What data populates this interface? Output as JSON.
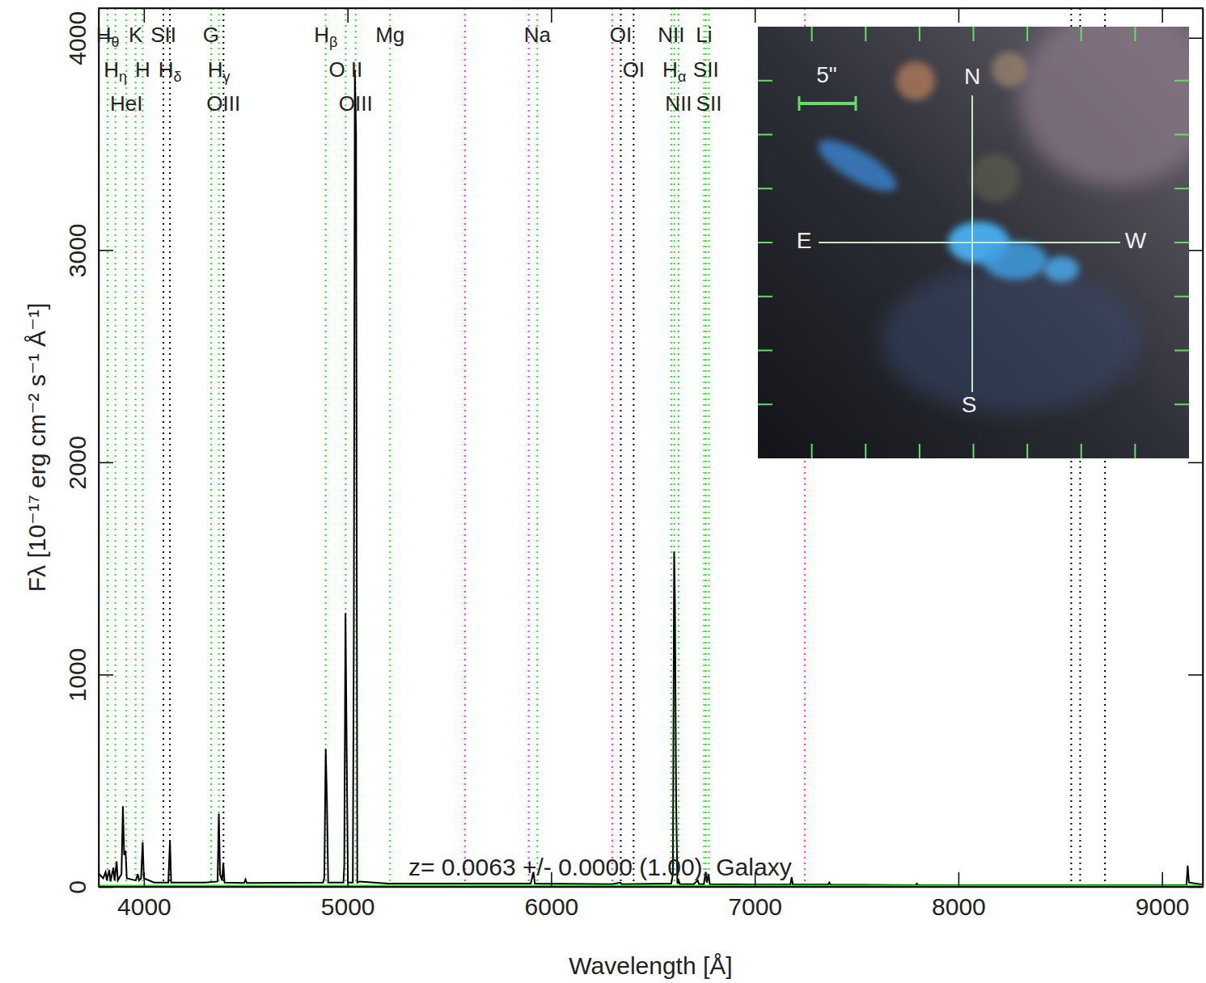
{
  "chart_data": {
    "type": "line",
    "xlabel": "Wavelength [Å]",
    "ylabel": "Fλ [10⁻¹⁷ erg cm⁻² s⁻¹ Å⁻¹]",
    "annotation": "z= 0.0063 +/- 0.0000 (1.00), Galaxy",
    "xlim": [
      3778,
      9200
    ],
    "ylim": [
      0,
      4140
    ],
    "xticks": [
      4000,
      5000,
      6000,
      7000,
      8000,
      9000
    ],
    "yticks": [
      0,
      1000,
      2000,
      3000,
      4000
    ],
    "x": [
      3780,
      3800,
      3812,
      3818,
      3830,
      3836,
      3850,
      3856,
      3866,
      3872,
      3890,
      3897,
      3903,
      3910,
      3916,
      3960,
      3970,
      3976,
      3986,
      3994,
      4000,
      4050,
      4120,
      4128,
      4134,
      4300,
      4362,
      4368,
      4374,
      4384,
      4390,
      4396,
      4492,
      4499,
      4505,
      4880,
      4886,
      4893,
      4899,
      4905,
      4980,
      4984,
      4990,
      4996,
      5002,
      5026,
      5031,
      5036,
      5042,
      5048,
      5060,
      5200,
      5900,
      5913,
      5920,
      6300,
      6340,
      6346,
      6590,
      6598,
      6604,
      6608,
      6614,
      6620,
      6626,
      6632,
      6700,
      6720,
      6726,
      6750,
      6759,
      6765,
      6773,
      6779,
      7000,
      7175,
      7181,
      7187,
      7360,
      7366,
      7372,
      7790,
      7796,
      7802,
      9000,
      9120,
      9126,
      9132,
      9200
    ],
    "series": [
      {
        "color": "#000000",
        "values": [
          60,
          40,
          70,
          30,
          80,
          25,
          90,
          30,
          120,
          30,
          60,
          380,
          150,
          170,
          40,
          30,
          60,
          30,
          40,
          210,
          40,
          20,
          20,
          215,
          20,
          20,
          25,
          345,
          60,
          30,
          110,
          20,
          18,
          35,
          18,
          20,
          40,
          650,
          400,
          20,
          20,
          100,
          1290,
          640,
          20,
          20,
          1200,
          3850,
          3550,
          20,
          25,
          15,
          15,
          70,
          15,
          12,
          20,
          12,
          15,
          60,
          1580,
          1340,
          400,
          15,
          30,
          12,
          12,
          30,
          12,
          12,
          70,
          20,
          60,
          12,
          10,
          10,
          45,
          10,
          10,
          20,
          10,
          8,
          15,
          8,
          8,
          8,
          100,
          20,
          10
        ]
      },
      {
        "color": "#22dd22",
        "x": [
          3780,
          9200
        ],
        "values": [
          5,
          5
        ]
      }
    ],
    "line_markers": [
      {
        "wavelength": 3822,
        "label": "Hθ",
        "color": "#33dd33"
      },
      {
        "wavelength": 3860,
        "label": "Hη",
        "color": "#33dd33"
      },
      {
        "wavelength": 3914,
        "label": "HeI",
        "color": "#33dd33"
      },
      {
        "wavelength": 3959,
        "label": "K",
        "color": "#33dd33"
      },
      {
        "wavelength": 3994,
        "label": "H",
        "color": "#33dd33"
      },
      {
        "wavelength": 4096,
        "label": "SII",
        "color": "#000000"
      },
      {
        "wavelength": 4128,
        "label": "Hδ",
        "color": "#000000"
      },
      {
        "wavelength": 4330,
        "label": "G",
        "color": "#33dd33"
      },
      {
        "wavelength": 4368,
        "label": "Hγ",
        "color": "#33dd33"
      },
      {
        "wavelength": 4391,
        "label": "OIII",
        "color": "#000000"
      },
      {
        "wavelength": 4893,
        "label": "Hβ",
        "color": "#33dd33"
      },
      {
        "wavelength": 4991,
        "label": "O II",
        "color": "#33dd33"
      },
      {
        "wavelength": 5040,
        "label": "OIII",
        "color": "#33dd33"
      },
      {
        "wavelength": 5209,
        "label": "Mg",
        "color": "#33dd33"
      },
      {
        "wavelength": 5577,
        "label": null,
        "color": "#ff33ff"
      },
      {
        "wavelength": 5890,
        "label": null,
        "color": "#ff33ff"
      },
      {
        "wavelength": 5932,
        "label": "Na",
        "color": "#33dd33"
      },
      {
        "wavelength": 6300,
        "label": null,
        "color": "#ff33ff"
      },
      {
        "wavelength": 6342,
        "label": "OI",
        "color": "#000000"
      },
      {
        "wavelength": 6405,
        "label": "OI",
        "color": "#000000"
      },
      {
        "wavelength": 6590,
        "label": "NII",
        "color": "#33dd33"
      },
      {
        "wavelength": 6605,
        "label": "Hα",
        "color": "#33dd33"
      },
      {
        "wavelength": 6626,
        "label": "NII",
        "color": "#33dd33"
      },
      {
        "wavelength": 6751,
        "label": "Li",
        "color": "#33dd33"
      },
      {
        "wavelength": 6760,
        "label": "SII",
        "color": "#33dd33"
      },
      {
        "wavelength": 6775,
        "label": "SII",
        "color": "#33dd33"
      },
      {
        "wavelength": 7246,
        "label": null,
        "color": "#ff33ff"
      },
      {
        "wavelength": 8554,
        "label": null,
        "color": "#000000"
      },
      {
        "wavelength": 8598,
        "label": null,
        "color": "#000000"
      },
      {
        "wavelength": 8720,
        "label": null,
        "color": "#000000"
      }
    ],
    "inset": {
      "north": "N",
      "south": "S",
      "east": "E",
      "west": "W",
      "scale": "5\""
    }
  }
}
